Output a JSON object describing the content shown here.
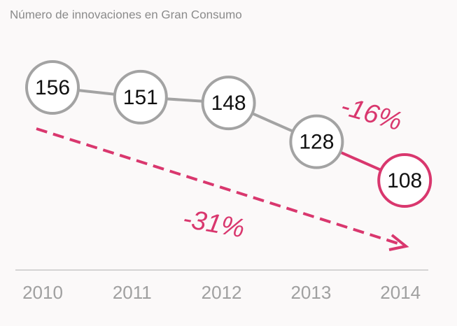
{
  "chart_data": {
    "type": "line",
    "title": "Número de innovaciones en Gran Consumo",
    "categories": [
      "2010",
      "2011",
      "2012",
      "2013",
      "2014"
    ],
    "values": [
      156,
      151,
      148,
      128,
      108
    ],
    "color": "#a3a3a3",
    "highlight_color": "#d9376e",
    "annotations": [
      {
        "text": "-16%"
      },
      {
        "text": "-31%"
      }
    ]
  }
}
